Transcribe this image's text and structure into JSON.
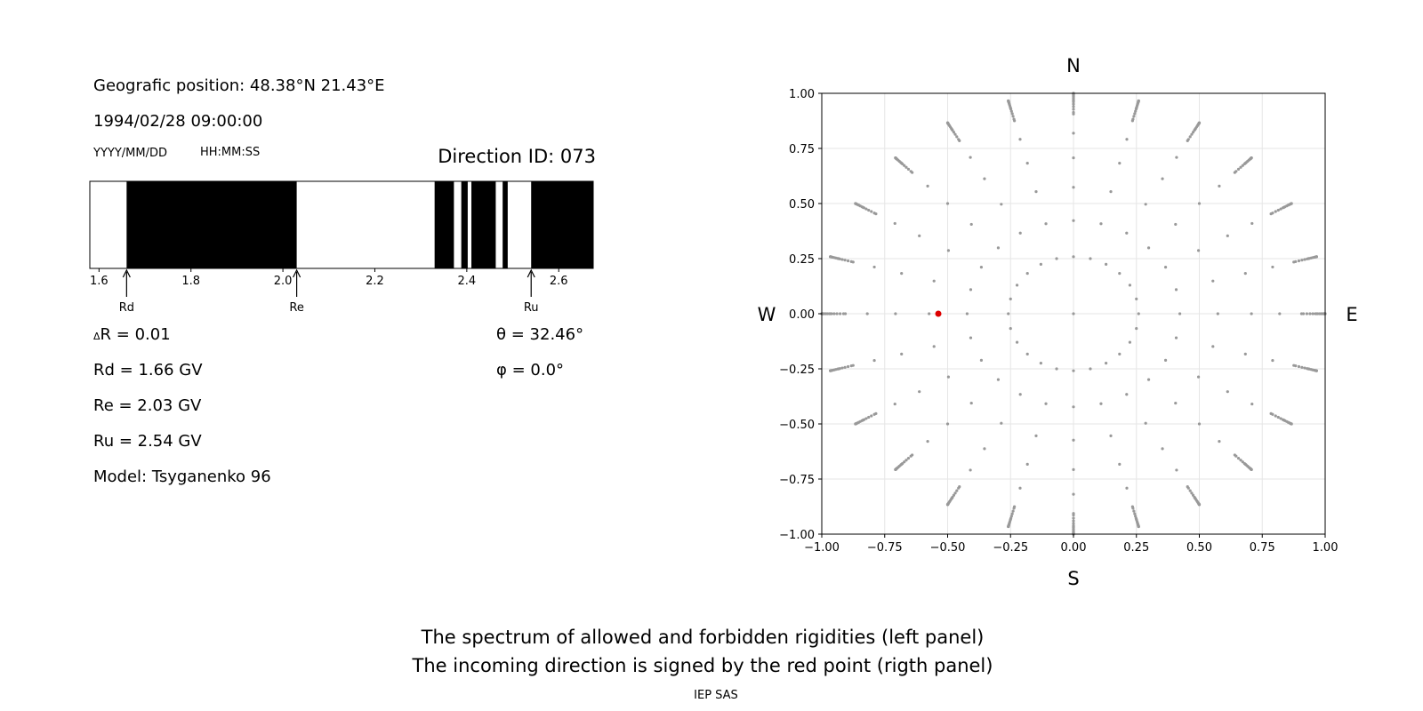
{
  "header": {
    "position": "Geografic position: 48.38°N 21.43°E",
    "datetime": "1994/02/28 09:00:00",
    "date_format": "YYYY/MM/DD",
    "time_format": "HH:MM:SS",
    "direction_id": "Direction ID: 073"
  },
  "stats": {
    "delta_r": "R = 0.01",
    "delta_symbol": "Δ",
    "rd": "Rd = 1.66 GV",
    "re": "Re = 2.03 GV",
    "ru": "Ru = 2.54 GV",
    "model": "Model: Tsyganenko 96",
    "theta": "θ  = 32.46°",
    "phi": "φ  = 0.0°"
  },
  "footer": {
    "line1": "The spectrum of allowed and forbidden rigidities (left panel)",
    "line2": "The incoming direction is signed by the red point (rigth panel)",
    "credit": "IEP SAS"
  },
  "chart_data": [
    {
      "type": "bar",
      "name": "rigidity-spectrum",
      "xlim": [
        1.58,
        2.675
      ],
      "ticks": [
        "1.6",
        "1.8",
        "2.0",
        "2.2",
        "2.4",
        "2.6"
      ],
      "forbidden_bands": [
        [
          1.66,
          2.03
        ],
        [
          2.33,
          2.372
        ],
        [
          2.388,
          2.402
        ],
        [
          2.41,
          2.463
        ],
        [
          2.478,
          2.489
        ],
        [
          2.54,
          2.675
        ]
      ],
      "markers": [
        {
          "label": "Rd",
          "value": 1.66
        },
        {
          "label": "Re",
          "value": 2.03
        },
        {
          "label": "Ru",
          "value": 2.54
        }
      ],
      "colors": {
        "forbidden": "#000000",
        "allowed": "#ffffff"
      }
    },
    {
      "type": "scatter",
      "name": "incoming-directions",
      "xlim": [
        -1.0,
        1.0
      ],
      "ylim": [
        -1.0,
        1.0
      ],
      "ticks": [
        "−1.00",
        "−0.75",
        "−0.50",
        "−0.25",
        "0.00",
        "0.25",
        "0.50",
        "0.75",
        "1.00"
      ],
      "directions": {
        "north": "N",
        "south": "S",
        "east": "E",
        "west": "W"
      },
      "grid": true,
      "rings_theta_deg": [
        15,
        25,
        35,
        45,
        55,
        65,
        75,
        85,
        90
      ],
      "azimuth_step_deg": 15,
      "colors": {
        "points": "#999999",
        "selected": "#dd0000"
      },
      "selected": {
        "x": -0.537,
        "y": 0.0
      }
    }
  ]
}
